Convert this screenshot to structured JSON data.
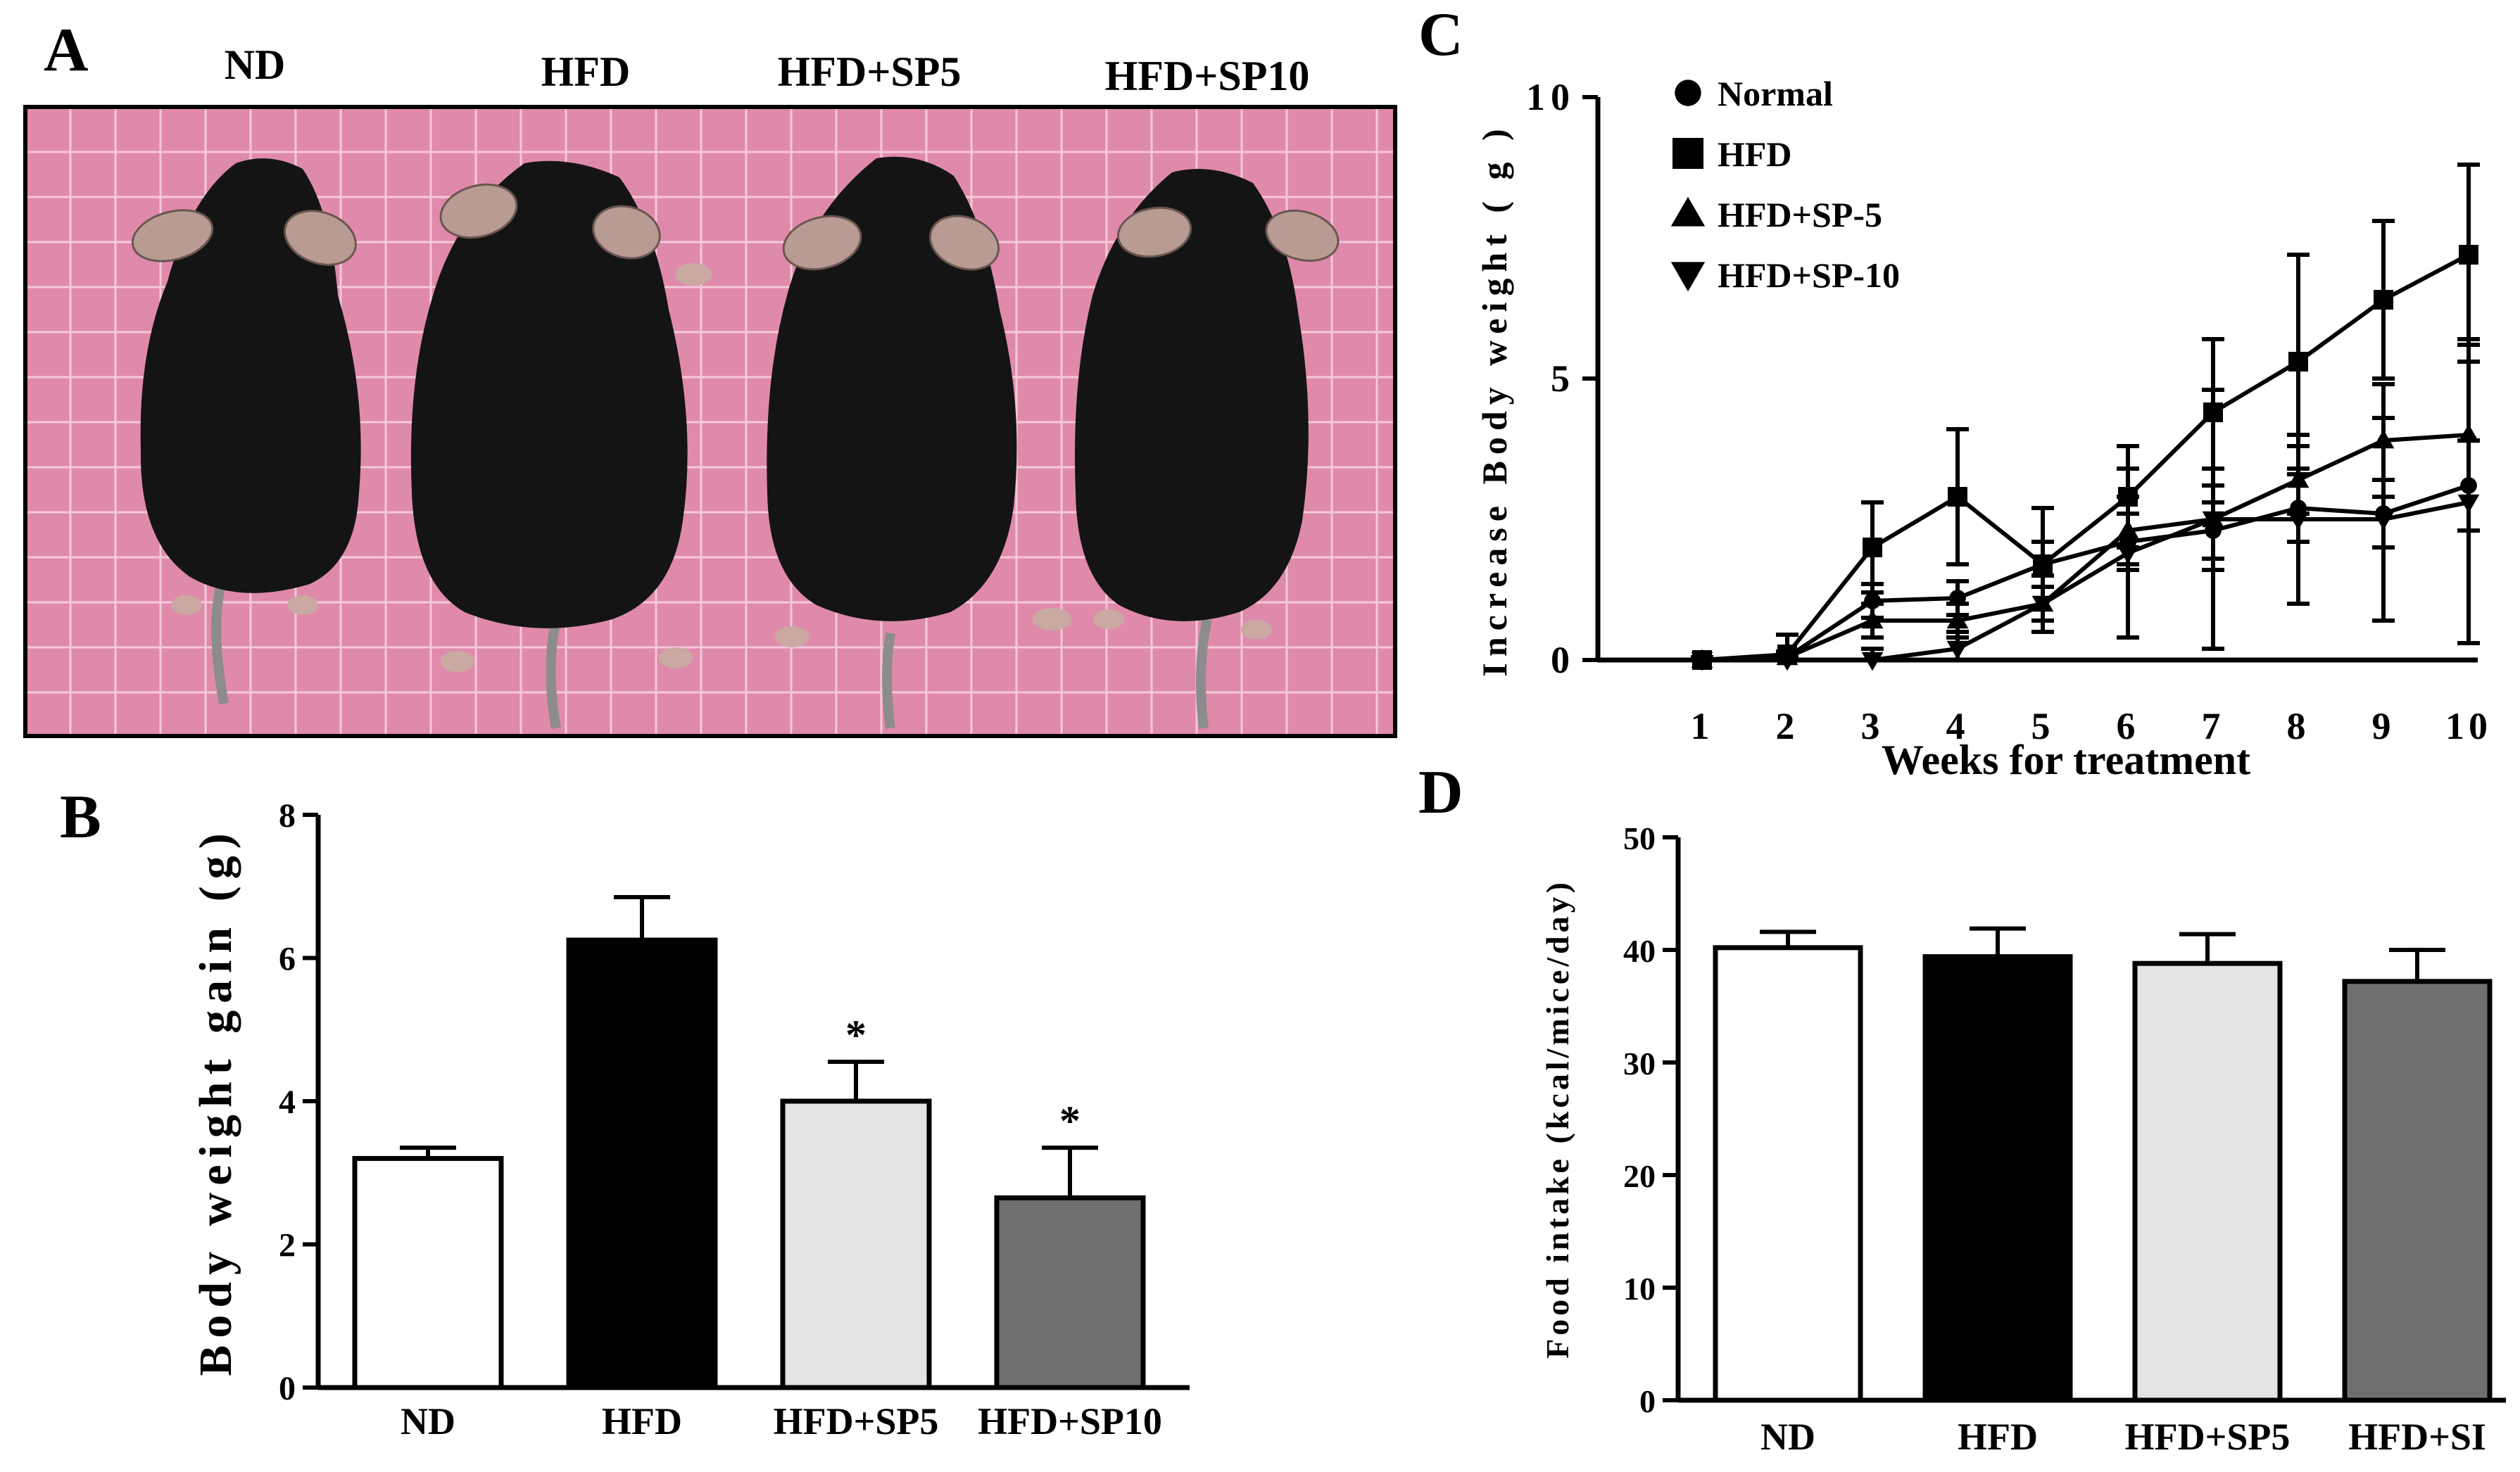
{
  "panels": {
    "A": {
      "letter": "A",
      "group_labels": [
        "ND",
        "HFD",
        "HFD+SP5",
        "HFD+SP10"
      ],
      "background_color": "#e08aab",
      "grid_color": "#f3c9da",
      "mouse_color": "#141414",
      "ear_color": "#b89b93"
    },
    "B": {
      "letter": "B"
    },
    "C": {
      "letter": "C"
    },
    "D": {
      "letter": "D"
    }
  },
  "chart_data": [
    {
      "id": "B",
      "type": "bar",
      "title": "",
      "xlabel": "",
      "ylabel": "Body weight gain (g)",
      "ylim": [
        0,
        8
      ],
      "yticks": [
        "0",
        "2",
        "4",
        "6",
        "8"
      ],
      "categories": [
        "ND",
        "HFD",
        "HFD+SP5",
        "HFD+SP10"
      ],
      "values": [
        3.2,
        6.25,
        4.0,
        2.65
      ],
      "errors": [
        0.15,
        0.6,
        0.55,
        0.7
      ],
      "significance": [
        "",
        "",
        "*",
        "*"
      ],
      "colors": [
        "#ffffff",
        "#000000",
        "#e3e3e3",
        "#6f6f6f"
      ]
    },
    {
      "id": "C",
      "type": "line",
      "title": "",
      "xlabel": "Weeks for treatment",
      "ylabel": "Increase Body weight ( g )",
      "ylim": [
        0,
        10
      ],
      "yticks": [
        "0",
        "5",
        "10"
      ],
      "x": [
        1,
        2,
        3,
        4,
        5,
        6,
        7,
        8,
        9,
        10
      ],
      "xticks": [
        "1",
        "2",
        "3",
        "4",
        "5",
        "6",
        "7",
        "8",
        "9",
        "10"
      ],
      "series": [
        {
          "name": "Normal",
          "marker": "circle",
          "values": [
            0,
            0.05,
            1.05,
            1.1,
            1.7,
            2.1,
            2.3,
            2.7,
            2.6,
            3.1
          ],
          "errors": [
            0.05,
            0.1,
            0.3,
            0.3,
            0.4,
            0.5,
            0.5,
            0.6,
            0.6,
            0.8
          ]
        },
        {
          "name": "HFD",
          "marker": "square",
          "values": [
            0,
            0.1,
            2.0,
            2.9,
            1.7,
            2.9,
            4.4,
            5.3,
            6.4,
            7.2
          ],
          "errors": [
            0.05,
            0.35,
            0.8,
            1.2,
            1.0,
            0.9,
            1.3,
            1.9,
            1.4,
            1.6
          ]
        },
        {
          "name": "HFD+SP-5",
          "marker": "triangle-up",
          "values": [
            0,
            0.05,
            0.7,
            0.7,
            1.0,
            2.3,
            2.5,
            3.2,
            3.9,
            4.0
          ],
          "errors": [
            0.05,
            0.1,
            0.3,
            0.3,
            0.5,
            0.6,
            0.9,
            0.6,
            1.0,
            1.7
          ]
        },
        {
          "name": "HFD+SP-10",
          "marker": "triangle-down",
          "values": [
            0,
            0.0,
            0.0,
            0.2,
            1.0,
            1.9,
            2.5,
            2.5,
            2.5,
            2.8
          ],
          "errors": [
            0.05,
            0.05,
            0.2,
            0.3,
            0.5,
            1.5,
            2.3,
            1.5,
            1.8,
            2.5
          ]
        }
      ],
      "legend": "top-left"
    },
    {
      "id": "D",
      "type": "bar",
      "title": "",
      "xlabel": "",
      "ylabel": "Food intake (kcal/mice/day)",
      "ylim": [
        0,
        50
      ],
      "yticks": [
        "0",
        "10",
        "20",
        "30",
        "40",
        "50"
      ],
      "categories": [
        "ND",
        "HFD",
        "HFD+SP5",
        "HFD+SI"
      ],
      "values": [
        40.2,
        39.4,
        38.8,
        37.2
      ],
      "errors": [
        1.4,
        2.5,
        2.6,
        2.8
      ],
      "significance": [
        "",
        "",
        "",
        ""
      ],
      "colors": [
        "#ffffff",
        "#000000",
        "#e3e3e3",
        "#6f6f6f"
      ]
    }
  ]
}
